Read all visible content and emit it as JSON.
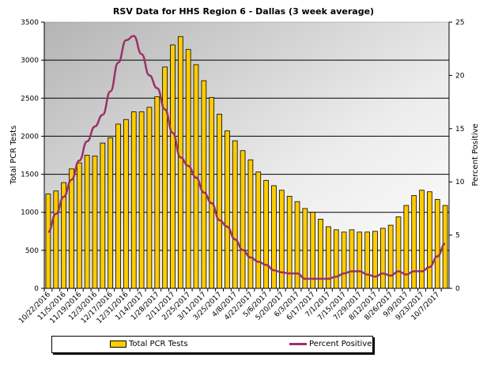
{
  "chart_data": {
    "type": "bar",
    "title": "RSV Data for HHS Region 6 - Dallas (3 week average)",
    "xlabel": "",
    "ylabel": "Total PCR Tests",
    "y2label": "Percent Positive",
    "ylim": [
      0,
      3500
    ],
    "y2lim": [
      0,
      25
    ],
    "yticks": [
      0,
      500,
      1000,
      1500,
      2000,
      2500,
      3000,
      3500
    ],
    "y2ticks": [
      0,
      5,
      10,
      15,
      20,
      25
    ],
    "grid": true,
    "legend_position": "bottom",
    "x_tick_labels": [
      "10/22/2016",
      "11/5/2016",
      "11/19/2016",
      "12/3/2016",
      "12/17/2016",
      "12/31/2016",
      "1/14/2017",
      "1/28/2017",
      "2/11/2017",
      "2/25/2017",
      "3/11/2017",
      "3/25/2017",
      "4/8/2017",
      "4/22/2017",
      "5/6/2017",
      "5/20/2017",
      "6/3/2017",
      "6/17/2017",
      "7/1/2017",
      "7/15/2017",
      "7/29/2017",
      "8/12/2017",
      "8/26/2017",
      "9/9/2017",
      "9/23/2017",
      "10/7/2017"
    ],
    "series": [
      {
        "name": "Total PCR Tests",
        "type": "bar",
        "axis": "left",
        "color": "#FFCC00",
        "values": [
          1240,
          1280,
          1390,
          1570,
          1650,
          1750,
          1740,
          1910,
          1980,
          2160,
          2220,
          2320,
          2320,
          2380,
          2520,
          2910,
          3200,
          3310,
          3140,
          2940,
          2730,
          2510,
          2290,
          2070,
          1940,
          1810,
          1690,
          1530,
          1420,
          1350,
          1290,
          1210,
          1140,
          1050,
          1000,
          910,
          810,
          770,
          740,
          770,
          740,
          740,
          750,
          790,
          830,
          940,
          1090,
          1220,
          1290,
          1270,
          1170,
          1090
        ]
      },
      {
        "name": "Percent Positive",
        "type": "line",
        "axis": "right",
        "color": "#993366",
        "values": [
          5.3,
          7.0,
          8.6,
          10.2,
          12.0,
          13.8,
          15.2,
          16.3,
          18.5,
          21.2,
          23.3,
          23.7,
          22.0,
          20.0,
          18.8,
          16.8,
          14.6,
          12.3,
          11.5,
          10.4,
          9.0,
          8.0,
          6.4,
          5.8,
          4.6,
          3.6,
          2.9,
          2.5,
          2.2,
          1.7,
          1.5,
          1.4,
          1.4,
          0.9,
          0.9,
          0.9,
          0.9,
          1.1,
          1.4,
          1.6,
          1.6,
          1.3,
          1.1,
          1.4,
          1.2,
          1.6,
          1.3,
          1.6,
          1.6,
          2.0,
          3.0,
          4.2
        ]
      }
    ]
  }
}
